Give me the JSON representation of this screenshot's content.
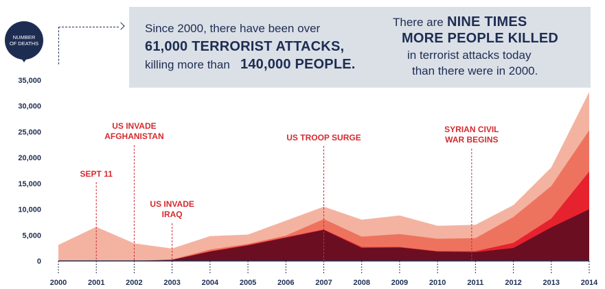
{
  "header": {
    "badge_line1": "NUMBER",
    "badge_line2": "OF DEATHS",
    "left_line1": "Since 2000, there have been over",
    "left_line2_bold": "61,000 TERRORIST ATTACKS,",
    "left_line3_pre": "killing more than",
    "left_line3_bold": "140,000 PEOPLE.",
    "right_line1_pre": "There are",
    "right_line1_bold": "NINE TIMES",
    "right_line2_bold": "MORE PEOPLE KILLED",
    "right_line3": "in terrorist attacks today",
    "right_line4": "than there were in 2000."
  },
  "colors": {
    "navy": "#1d2d52",
    "annotation_red": "#d42a2f",
    "layer_4": "#f4b3a1",
    "layer_3": "#ee735f",
    "layer_2": "#e5222e",
    "layer_1": "#6b0e22",
    "panel": "#dbe0e7"
  },
  "chart_data": {
    "type": "area",
    "stacked": true,
    "x": [
      2000,
      2001,
      2002,
      2003,
      2004,
      2005,
      2006,
      2007,
      2008,
      2009,
      2010,
      2011,
      2012,
      2013,
      2014
    ],
    "ylim": [
      0,
      35000
    ],
    "yticks": [
      0,
      5000,
      10000,
      15000,
      20000,
      25000,
      30000,
      35000
    ],
    "ytick_labels": [
      "0",
      "5,000",
      "10,000",
      "15,000",
      "20,000",
      "25,000",
      "30,000",
      "35,000"
    ],
    "ylabel": "NUMBER OF DEATHS",
    "grid": false,
    "series": [
      {
        "values": [
          0,
          0,
          0,
          200,
          1800,
          3000,
          4500,
          6000,
          2500,
          2600,
          1800,
          1700,
          2500,
          6500,
          10000
        ]
      },
      {
        "values": [
          0,
          0,
          0,
          0,
          100,
          100,
          100,
          100,
          200,
          100,
          100,
          200,
          1000,
          1700,
          7300
        ]
      },
      {
        "values": [
          0,
          0,
          0,
          100,
          300,
          200,
          300,
          2000,
          2000,
          2500,
          2400,
          2500,
          5000,
          6300,
          8000
        ]
      },
      {
        "values": [
          3100,
          6600,
          3400,
          2100,
          2600,
          1800,
          2900,
          2400,
          3300,
          3600,
          2500,
          2600,
          2300,
          3600,
          7400
        ]
      }
    ],
    "annotations": [
      {
        "label": "SEPT 11",
        "label2": "",
        "year": 2001
      },
      {
        "label": "US INVADE",
        "label2": "AFGHANISTAN",
        "year": 2002
      },
      {
        "label": "US INVADE",
        "label2": "IRAQ",
        "year": 2003
      },
      {
        "label": "US TROOP SURGE",
        "label2": "",
        "year": 2007
      },
      {
        "label": "SYRIAN CIVIL",
        "label2": "WAR BEGINS",
        "year": 2010.9
      }
    ]
  }
}
